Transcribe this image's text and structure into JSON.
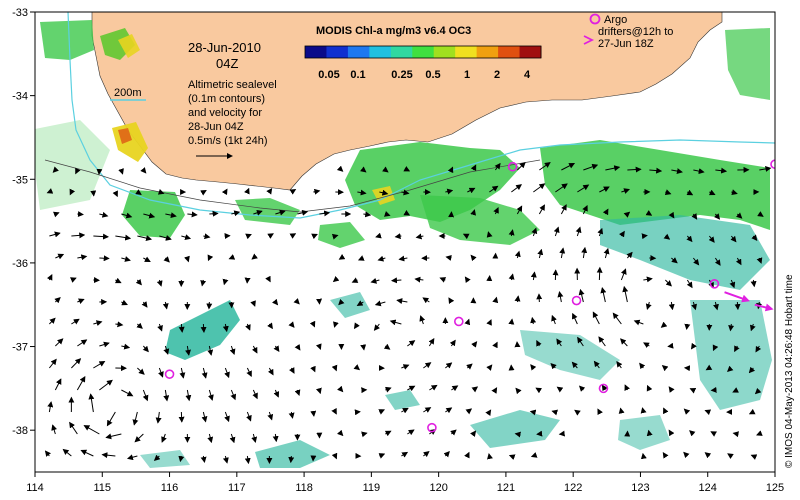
{
  "map": {
    "lon_range": [
      114,
      125
    ],
    "lat_range": [
      -38.5,
      -33
    ],
    "x_ticks": [
      114,
      115,
      116,
      117,
      118,
      119,
      120,
      121,
      122,
      123,
      124,
      125
    ],
    "y_ticks": [
      -33,
      -34,
      -35,
      -36,
      -37,
      -38
    ],
    "land_color": "#f9c99f",
    "frame_color": "#000000",
    "contour_color": "#5bd0e0",
    "arrow_color": "#000000",
    "argo_color": "#e020e0"
  },
  "annotations": {
    "date": "28-Jun-2010",
    "hour": "04Z",
    "contour_label": "200m",
    "desc_lines": [
      "Altimetric sealevel",
      "(0.1m contours)",
      "and velocity for",
      "28-Jun 04Z",
      "0.5m/s (1kt 24h)"
    ],
    "argo_lines": [
      "Argo",
      "drifters@12h to",
      "27-Jun 18Z"
    ],
    "credit": "© IMOS 04-May-2013 04:26:48 Hobart time"
  },
  "colorbar": {
    "title": "MODIS Chl-a mg/m3 v6.4 OC3",
    "ticks": [
      "0.05",
      "0.1",
      "0.25",
      "0.5",
      "1",
      "2",
      "4"
    ],
    "colors": [
      "#0a0a8a",
      "#1030d0",
      "#1e78f0",
      "#20c0e0",
      "#30d8a0",
      "#40e040",
      "#a0e020",
      "#f0e020",
      "#f0a010",
      "#e05010",
      "#a01010"
    ]
  },
  "argo_floats": [
    {
      "lon": 116.0,
      "lat": -37.33
    },
    {
      "lon": 119.9,
      "lat": -37.97
    },
    {
      "lon": 120.3,
      "lat": -36.7
    },
    {
      "lon": 121.1,
      "lat": -34.85
    },
    {
      "lon": 122.05,
      "lat": -36.45
    },
    {
      "lon": 122.45,
      "lat": -37.5
    },
    {
      "lon": 124.1,
      "lat": -36.25
    },
    {
      "lon": 125.0,
      "lat": -34.82
    }
  ],
  "argo_tracks": [
    {
      "from": [
        124.25,
        -36.35
      ],
      "to": [
        124.6,
        -36.45
      ]
    },
    {
      "from": [
        124.7,
        -36.5
      ],
      "to": [
        124.95,
        -36.55
      ]
    }
  ]
}
